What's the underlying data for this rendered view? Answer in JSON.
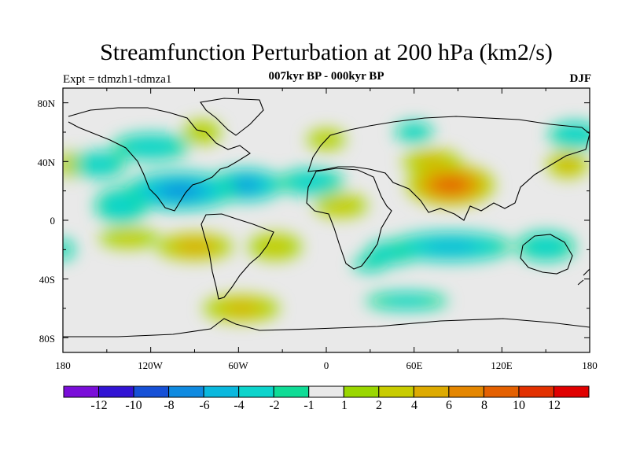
{
  "header": {
    "title": "Streamfunction Perturbation at 200 hPa (km2/s)",
    "experiment": "Expt = tdmzh1-tdmza1",
    "period": "007kyr BP - 000kyr BP",
    "season": "DJF"
  },
  "axes": {
    "lat_labels": [
      "80N",
      "40N",
      "0",
      "40S",
      "80S"
    ],
    "lon_labels": [
      "180",
      "120W",
      "60W",
      "0",
      "60E",
      "120E",
      "180"
    ]
  },
  "colorbar": {
    "colors": [
      "#7a0ed9",
      "#3214d4",
      "#1650d6",
      "#0f8ae0",
      "#0ab8de",
      "#0dd4cc",
      "#0fdc96",
      "#e9e9e9",
      "#9ad700",
      "#c8cc00",
      "#ddaa00",
      "#e48600",
      "#e46000",
      "#e23000",
      "#e00000"
    ],
    "labels": [
      "-12",
      "-10",
      "-8",
      "-6",
      "-4",
      "-2",
      "-1",
      "1",
      "2",
      "4",
      "6",
      "8",
      "10",
      "12"
    ]
  },
  "fields": [
    {
      "lon": -100,
      "lat": 20,
      "value": -6.5,
      "width": 38,
      "height": 13
    },
    {
      "lon": -55,
      "lat": 24,
      "value": -6,
      "width": 25,
      "height": 11
    },
    {
      "lon": -10,
      "lat": 26,
      "value": -3,
      "width": 22,
      "height": 9
    },
    {
      "lon": -140,
      "lat": 10,
      "value": -3,
      "width": 18,
      "height": 12
    },
    {
      "lon": -120,
      "lat": 50,
      "value": -3,
      "width": 26,
      "height": 9
    },
    {
      "lon": -155,
      "lat": 38,
      "value": -3,
      "width": 18,
      "height": 9
    },
    {
      "lon": -90,
      "lat": -18,
      "value": 5,
      "width": 26,
      "height": 9
    },
    {
      "lon": -35,
      "lat": -18,
      "value": 2.5,
      "width": 18,
      "height": 9
    },
    {
      "lon": -135,
      "lat": -12,
      "value": 2,
      "width": 20,
      "height": 7
    },
    {
      "lon": -58,
      "lat": -60,
      "value": 4,
      "width": 26,
      "height": 9
    },
    {
      "lon": -85,
      "lat": 60,
      "value": 2,
      "width": 13,
      "height": 8
    },
    {
      "lon": 0,
      "lat": 55,
      "value": 2,
      "width": 13,
      "height": 7
    },
    {
      "lon": 10,
      "lat": 10,
      "value": 3,
      "width": 18,
      "height": 8
    },
    {
      "lon": 85,
      "lat": 24,
      "value": 9.5,
      "width": 30,
      "height": 14
    },
    {
      "lon": 72,
      "lat": 40,
      "value": 4,
      "width": 20,
      "height": 8
    },
    {
      "lon": 165,
      "lat": 38,
      "value": 4,
      "width": 14,
      "height": 9
    },
    {
      "lon": -175,
      "lat": 38,
      "value": 2.5,
      "width": 10,
      "height": 8
    },
    {
      "lon": 60,
      "lat": 60,
      "value": -2.5,
      "width": 13,
      "height": 7
    },
    {
      "lon": 170,
      "lat": 58,
      "value": -3,
      "width": 18,
      "height": 9
    },
    {
      "lon": 85,
      "lat": -18,
      "value": -4.5,
      "width": 42,
      "height": 10
    },
    {
      "lon": 45,
      "lat": -22,
      "value": -3,
      "width": 18,
      "height": 8
    },
    {
      "lon": 150,
      "lat": -18,
      "value": -2.5,
      "width": 20,
      "height": 10
    },
    {
      "lon": -180,
      "lat": -20,
      "value": -2,
      "width": 8,
      "height": 7
    },
    {
      "lon": 55,
      "lat": -55,
      "value": -2,
      "width": 28,
      "height": 6
    },
    {
      "lon": 30,
      "lat": -30,
      "value": -2,
      "width": 12,
      "height": 5
    }
  ]
}
